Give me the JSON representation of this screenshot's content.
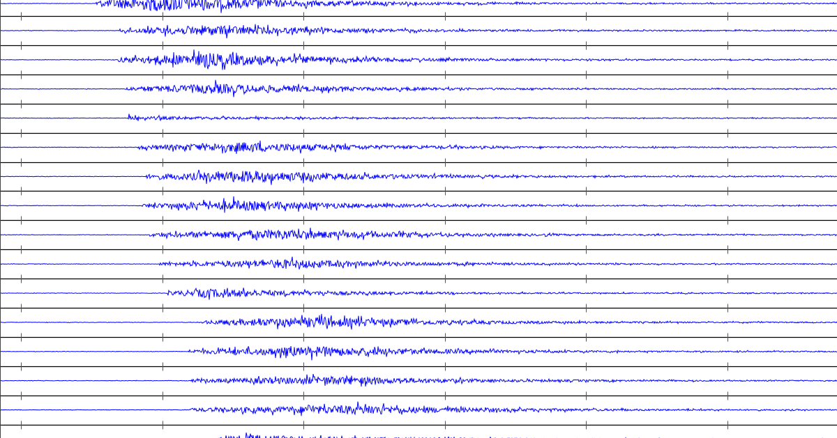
{
  "chart_data": {
    "type": "line",
    "title": "",
    "xlabel": "",
    "ylabel": "",
    "x_ticks_count": 6,
    "xlim": [
      -0.15,
      5.77
    ],
    "grid": false,
    "legend": "none",
    "colors": {
      "trace": "#0000ff",
      "divider": "#000000"
    },
    "traces": [
      {
        "onset": 0.53,
        "peak": 0.99,
        "amp": 1.0
      },
      {
        "onset": 0.7,
        "peak": 1.28,
        "amp": 0.6
      },
      {
        "onset": 0.69,
        "peak": 1.31,
        "amp": 0.8
      },
      {
        "onset": 0.74,
        "peak": 1.36,
        "amp": 0.6
      },
      {
        "onset": 0.77,
        "peak": 0.78,
        "amp": 0.5
      },
      {
        "onset": 0.82,
        "peak": 1.55,
        "amp": 0.6
      },
      {
        "onset": 0.88,
        "peak": 1.6,
        "amp": 0.7
      },
      {
        "onset": 0.85,
        "peak": 1.5,
        "amp": 0.6
      },
      {
        "onset": 0.91,
        "peak": 1.78,
        "amp": 0.6
      },
      {
        "onset": 0.98,
        "peak": 1.83,
        "amp": 0.5
      },
      {
        "onset": 1.04,
        "peak": 1.28,
        "amp": 0.5
      },
      {
        "onset": 1.28,
        "peak": 2.05,
        "amp": 0.6
      },
      {
        "onset": 1.18,
        "peak": 2.07,
        "amp": 0.6
      },
      {
        "onset": 1.2,
        "peak": 2.17,
        "amp": 0.5
      },
      {
        "onset": 1.19,
        "peak": 2.34,
        "amp": 0.55
      },
      {
        "onset": 1.4,
        "peak": 1.58,
        "amp": 0.5
      }
    ]
  }
}
